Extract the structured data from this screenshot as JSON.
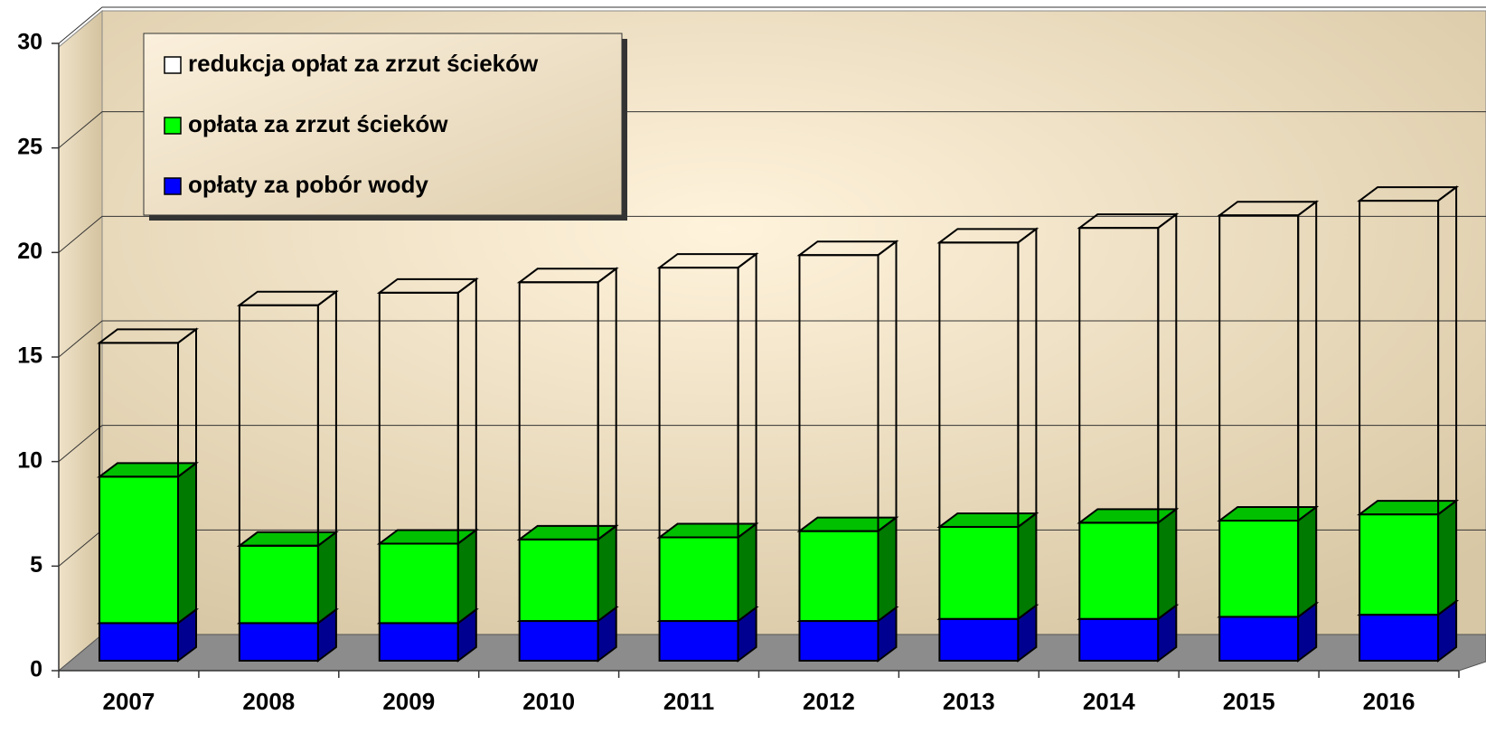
{
  "chart_data": {
    "type": "bar3d_stacked",
    "categories": [
      "2007",
      "2008",
      "2009",
      "2010",
      "2011",
      "2012",
      "2013",
      "2014",
      "2015",
      "2016"
    ],
    "series": [
      {
        "name": "opłaty za pobór wody",
        "color": "#0000ff",
        "values": [
          1.8,
          1.8,
          1.8,
          1.9,
          1.9,
          1.9,
          2.0,
          2.0,
          2.1,
          2.2
        ]
      },
      {
        "name": "opłata za zrzut ścieków",
        "color": "#00ff00",
        "values": [
          7.0,
          3.7,
          3.8,
          3.9,
          4.0,
          4.3,
          4.4,
          4.6,
          4.6,
          4.8
        ]
      },
      {
        "name": "redukcja opłat za zrzut ścieków",
        "color": "#ffffff",
        "values": [
          6.4,
          11.5,
          12.0,
          12.3,
          12.9,
          13.2,
          13.6,
          14.1,
          14.6,
          15.0
        ]
      }
    ],
    "ylim": [
      0,
      30
    ],
    "yticks": [
      0,
      5,
      10,
      15,
      20,
      25,
      30
    ],
    "grid": true,
    "legend": "top-left"
  }
}
